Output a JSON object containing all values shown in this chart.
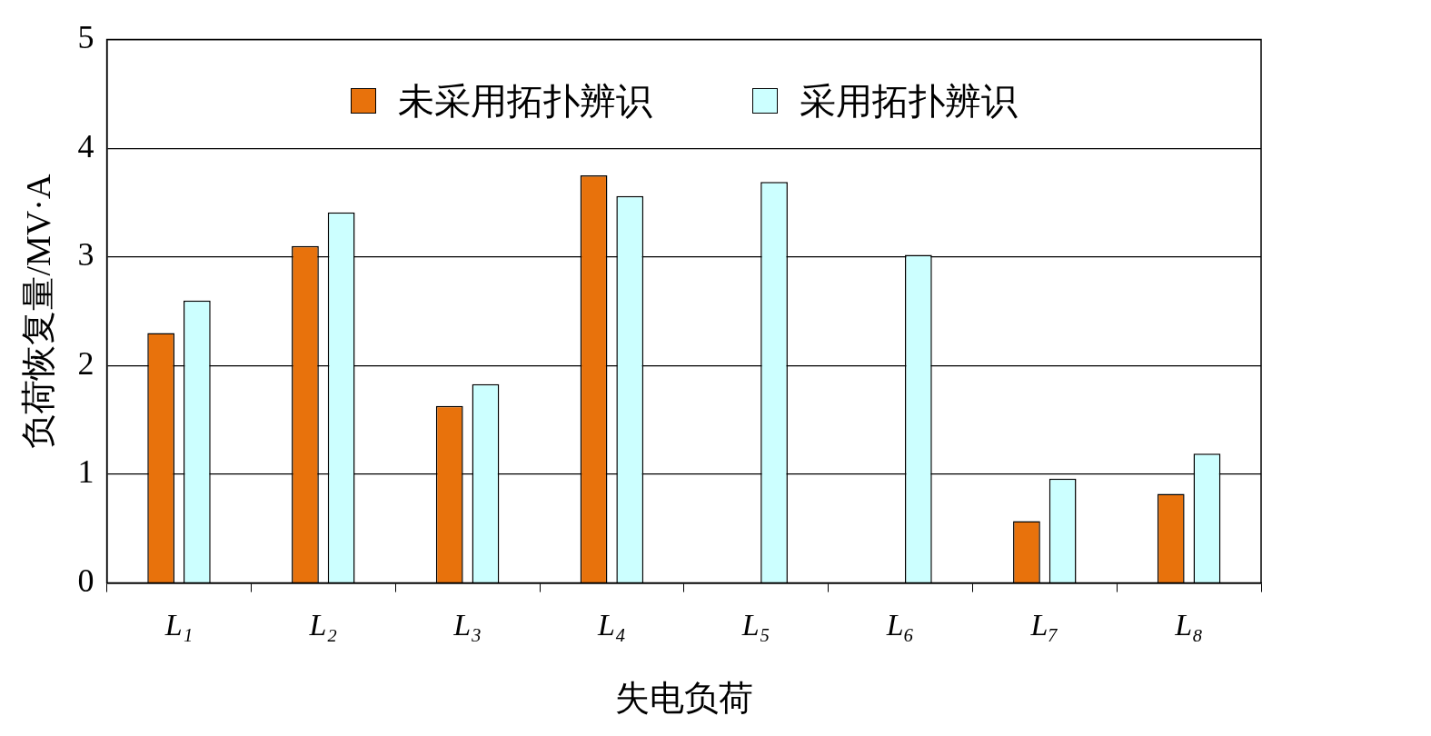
{
  "chart_data": {
    "type": "bar",
    "xlabel": "失电负荷",
    "ylabel": "负荷恢复量/MV·A",
    "categories": [
      "L₁",
      "L₂",
      "L₃",
      "L₄",
      "L₅",
      "L₆",
      "L₇",
      "L₈"
    ],
    "series": [
      {
        "name": "未采用拓扑辨识",
        "color": "#e8720c",
        "values": [
          2.3,
          3.1,
          1.63,
          3.75,
          0,
          0,
          0.57,
          0.82
        ]
      },
      {
        "name": "采用拓扑辨识",
        "color": "#ccffff",
        "values": [
          2.6,
          3.41,
          1.83,
          3.56,
          3.69,
          3.02,
          0.96,
          1.19
        ]
      }
    ],
    "ylim": [
      0,
      5
    ],
    "yticks": [
      0,
      1,
      2,
      3,
      4,
      5
    ],
    "grid": "y",
    "legend": "top"
  }
}
